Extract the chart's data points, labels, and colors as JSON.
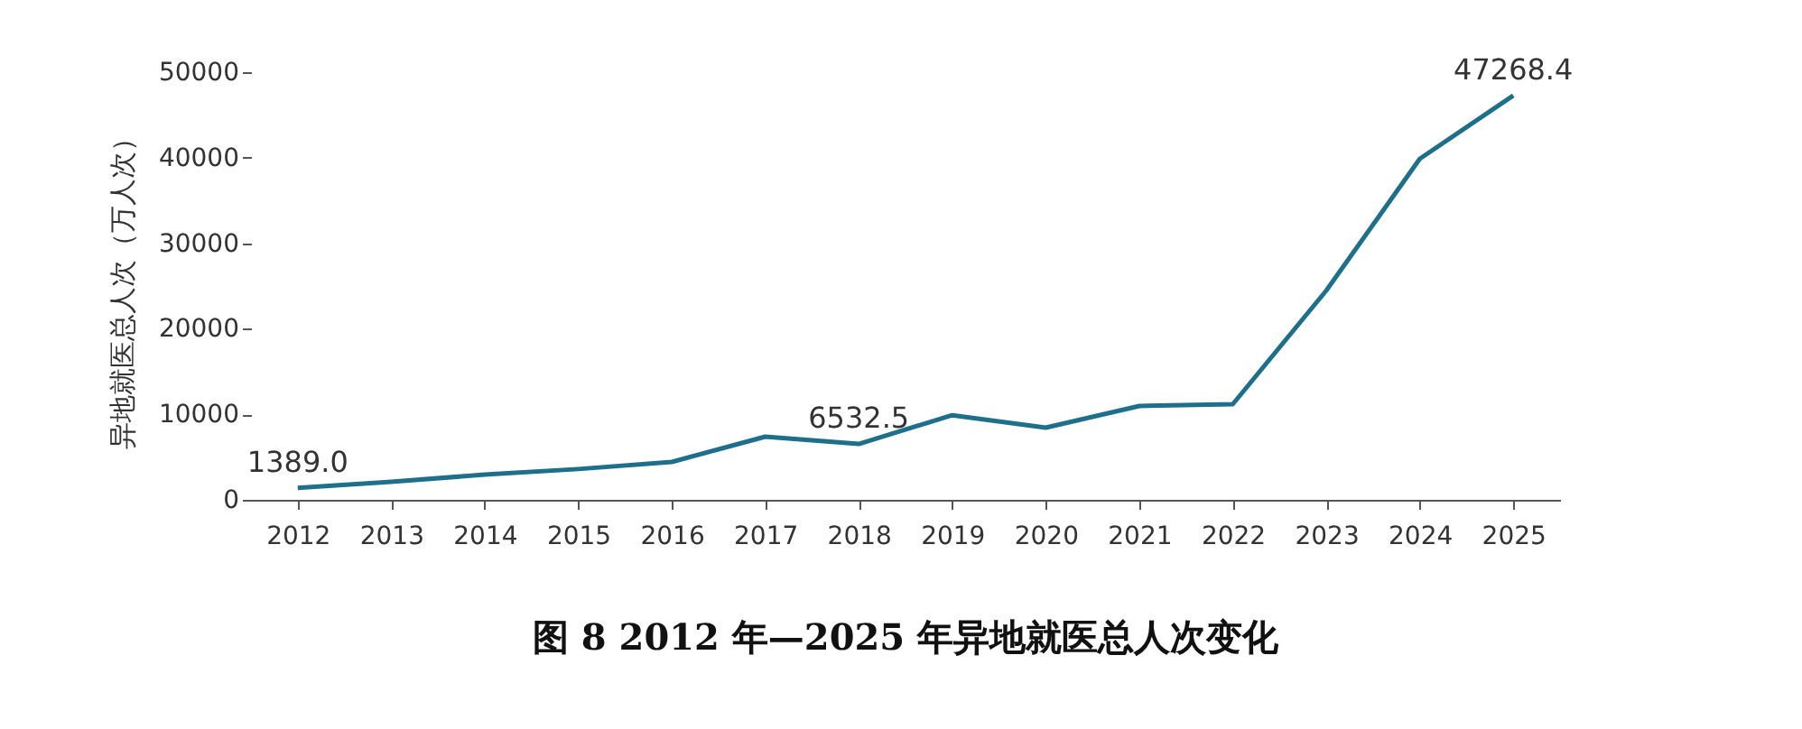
{
  "chart_data": {
    "type": "line",
    "title": "图 8   2012 年—2025 年异地就医总人次变化",
    "ylabel": "异地就医总人次（万人次）",
    "categories": [
      "2012",
      "2013",
      "2014",
      "2015",
      "2016",
      "2017",
      "2018",
      "2019",
      "2020",
      "2021",
      "2022",
      "2023",
      "2024",
      "2025"
    ],
    "series": [
      {
        "color": "#1d6f8c",
        "values": [
          1389.0,
          2100,
          2950,
          3600,
          4430,
          7380,
          6532.5,
          9900,
          8440,
          10970,
          11180,
          24470,
          39870,
          47268.4
        ],
        "value_labels": [
          "1389.0",
          null,
          null,
          null,
          null,
          null,
          "6532.5",
          null,
          null,
          null,
          null,
          null,
          null,
          "47268.4"
        ]
      }
    ],
    "ylim": [
      0,
      50000
    ],
    "yticks": [
      0,
      10000,
      20000,
      30000,
      40000,
      50000
    ],
    "grid": false,
    "legend": false,
    "marker": "none",
    "line_style": "solid"
  }
}
